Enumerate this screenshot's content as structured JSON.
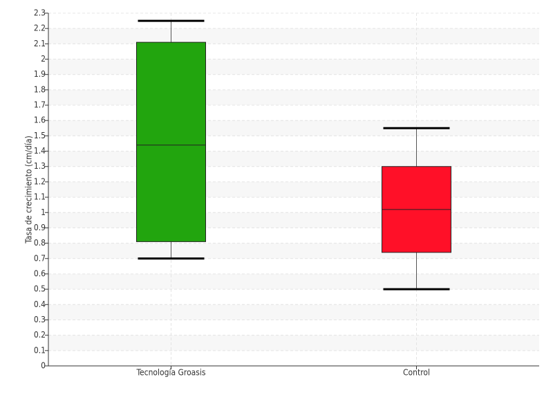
{
  "chart_data": {
    "type": "box",
    "ylabel": "Tasa de crecimiento (cm/día)",
    "categories": [
      "Tecnología Groasis",
      "Control"
    ],
    "boxes": [
      {
        "min": 0.7,
        "q1": 0.81,
        "median": 1.44,
        "q3": 2.11,
        "max": 2.25,
        "color": "#22a50e"
      },
      {
        "min": 0.5,
        "q1": 0.74,
        "median": 1.02,
        "q3": 1.3,
        "max": 1.55,
        "color": "#ff1028"
      }
    ],
    "ylim": [
      0,
      2.3
    ],
    "yticks": [
      0,
      0.1,
      0.2,
      0.3,
      0.4,
      0.5,
      0.6,
      0.7,
      0.8,
      0.9,
      1,
      1.1,
      1.2,
      1.3,
      1.4,
      1.5,
      1.6,
      1.7,
      1.8,
      1.9,
      2,
      2.1,
      2.2,
      2.3
    ],
    "grid": true
  }
}
